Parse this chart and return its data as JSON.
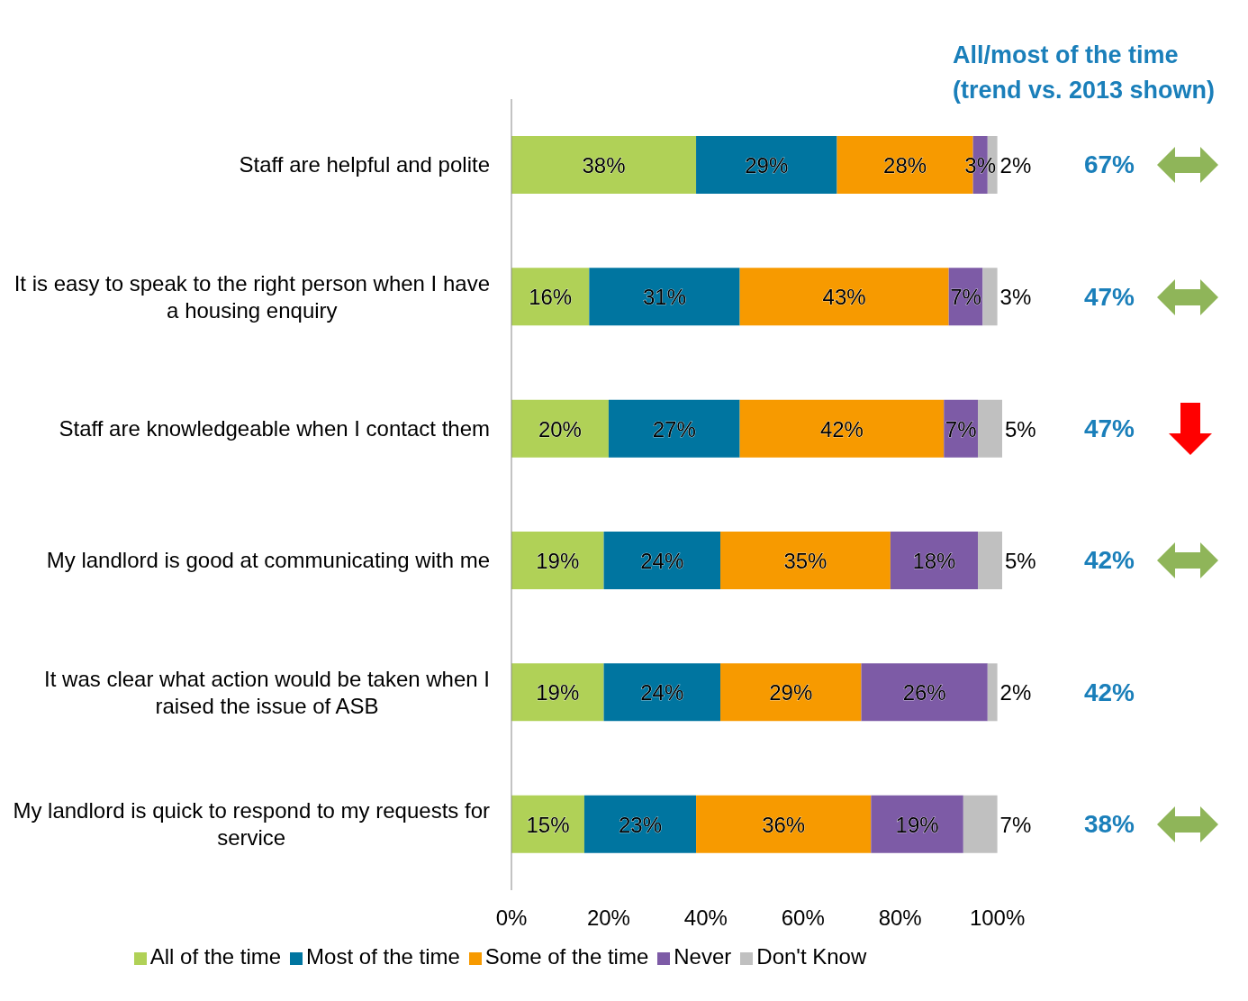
{
  "chart_data": {
    "type": "bar",
    "orientation": "horizontal",
    "stacked": true,
    "categories": [
      "Staff are helpful and polite",
      "It is easy to speak to the right person when I have a housing enquiry",
      "Staff are knowledgeable when I contact them",
      "My landlord is good at communicating with me",
      "It was clear what action would be taken when I raised the issue of ASB",
      "My landlord is quick to respond to my requests for service"
    ],
    "series": [
      {
        "name": "All of the time",
        "color": "#b0d157",
        "values": [
          38,
          16,
          20,
          19,
          19,
          15
        ],
        "value_labels": [
          "38%",
          "16%",
          "20%",
          "19%",
          "19%",
          "15%"
        ]
      },
      {
        "name": "Most of the time",
        "color": "#0075a0",
        "values": [
          29,
          31,
          27,
          24,
          24,
          23
        ],
        "value_labels": [
          "29%",
          "31%",
          "27%",
          "24%",
          "24%",
          "23%"
        ]
      },
      {
        "name": "Some of the time",
        "color": "#f79a00",
        "values": [
          28,
          43,
          42,
          35,
          29,
          36
        ],
        "value_labels": [
          "28%",
          "43%",
          "42%",
          "35%",
          "29%",
          "36%"
        ]
      },
      {
        "name": "Never",
        "color": "#7d5ba6",
        "values": [
          3,
          7,
          7,
          18,
          26,
          19
        ],
        "value_labels": [
          "3%",
          "7%",
          "7%",
          "18%",
          "26%",
          "19%"
        ]
      },
      {
        "name": "Don't Know",
        "color": "#c0c0c0",
        "values": [
          2,
          3,
          5,
          5,
          2,
          7
        ],
        "value_labels": [
          "2%",
          "3%",
          "5%",
          "5%",
          "2%",
          "7%"
        ]
      }
    ],
    "xlim": [
      0,
      101
    ],
    "xticks": [
      {
        "value": 0,
        "label": "0%"
      },
      {
        "value": 20,
        "label": "20%"
      },
      {
        "value": 40,
        "label": "40%"
      },
      {
        "value": 60,
        "label": "60%"
      },
      {
        "value": 80,
        "label": "80%"
      },
      {
        "value": 100,
        "label": "100%"
      }
    ],
    "legend": "bottom",
    "grid": false,
    "annotations": [
      "All/most of the time (trend vs. 2013 shown)",
      "67%",
      "47%",
      "47%",
      "42%",
      "42%",
      "38%"
    ]
  }
}
